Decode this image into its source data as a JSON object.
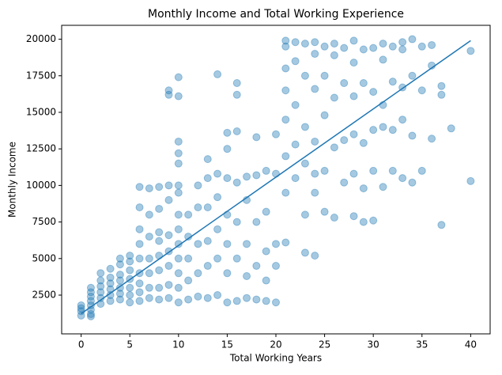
{
  "chart_data": {
    "type": "scatter",
    "title": "Monthly Income and Total Working Experience",
    "xlabel": "Total Working Years",
    "ylabel": "Monthly Income",
    "xlim": [
      -2,
      42
    ],
    "ylim": [
      -150,
      20950
    ],
    "xticks": [
      0,
      5,
      10,
      15,
      20,
      25,
      30,
      35,
      40
    ],
    "yticks": [
      2500,
      5000,
      7500,
      10000,
      12500,
      15000,
      17500,
      20000
    ],
    "points": {
      "color": "#1f77b4",
      "opacity": 0.4,
      "x": [
        0,
        0,
        0,
        0,
        1,
        1,
        1,
        1,
        1,
        1,
        1,
        1,
        2,
        2,
        2,
        2,
        2,
        2,
        3,
        3,
        3,
        3,
        3,
        3,
        4,
        4,
        4,
        4,
        4,
        4,
        4,
        5,
        5,
        5,
        5,
        5,
        5,
        5,
        6,
        6,
        6,
        6,
        6,
        6,
        6,
        6,
        6,
        7,
        7,
        7,
        7,
        7,
        7,
        7,
        8,
        8,
        8,
        8,
        8,
        8,
        8,
        8,
        9,
        9,
        9,
        9,
        9,
        9,
        9,
        9,
        9,
        10,
        10,
        10,
        10,
        10,
        10,
        10,
        10,
        10,
        10,
        10,
        10,
        10,
        10,
        11,
        11,
        11,
        11,
        11,
        12,
        12,
        12,
        12,
        12,
        13,
        13,
        13,
        13,
        13,
        13,
        14,
        14,
        14,
        14,
        14,
        14,
        15,
        15,
        15,
        15,
        15,
        15,
        15,
        16,
        16,
        16,
        16,
        16,
        16,
        16,
        17,
        17,
        17,
        17,
        17,
        18,
        18,
        18,
        18,
        18,
        19,
        19,
        19,
        19,
        19,
        20,
        20,
        20,
        20,
        20,
        21,
        21,
        21,
        21,
        21,
        21,
        21,
        21,
        22,
        22,
        22,
        22,
        22,
        23,
        23,
        23,
        23,
        23,
        23,
        24,
        24,
        24,
        24,
        24,
        24,
        24,
        25,
        25,
        25,
        25,
        25,
        26,
        26,
        26,
        26,
        26,
        27,
        27,
        27,
        27,
        28,
        28,
        28,
        28,
        28,
        28,
        29,
        29,
        29,
        29,
        29,
        30,
        30,
        30,
        30,
        30,
        31,
        31,
        31,
        31,
        31,
        32,
        32,
        32,
        32,
        33,
        33,
        33,
        33,
        33,
        34,
        34,
        34,
        34,
        35,
        35,
        35,
        36,
        36,
        36,
        37,
        37,
        37,
        38,
        40,
        40
      ],
      "y": [
        1100,
        1400,
        1600,
        1800,
        1050,
        1200,
        1500,
        1800,
        2100,
        2400,
        2700,
        3000,
        1900,
        2300,
        2700,
        3100,
        3500,
        4000,
        2100,
        2500,
        2900,
        3300,
        3700,
        4300,
        2200,
        2600,
        3000,
        3500,
        3900,
        4600,
        5000,
        2000,
        2500,
        3000,
        3600,
        4200,
        4800,
        5200,
        2100,
        2700,
        3300,
        4000,
        5000,
        6000,
        7000,
        8500,
        9900,
        2300,
        3000,
        4000,
        5000,
        6500,
        8000,
        9800,
        2200,
        3000,
        4200,
        5200,
        6200,
        6800,
        8400,
        9900,
        2300,
        3200,
        4500,
        5500,
        6600,
        9000,
        10000,
        16200,
        16500,
        2000,
        3000,
        4000,
        5000,
        6000,
        7000,
        8000,
        9500,
        10000,
        11500,
        12200,
        13000,
        16100,
        17400,
        2200,
        3500,
        5000,
        6500,
        8000,
        2400,
        4000,
        6000,
        8500,
        10000,
        2300,
        4500,
        6200,
        8500,
        10500,
        11800,
        2500,
        5000,
        7000,
        9200,
        10800,
        17600,
        2000,
        4000,
        6000,
        8000,
        10500,
        12500,
        13600,
        2100,
        5000,
        7500,
        10200,
        13700,
        16200,
        17000,
        2300,
        3800,
        6000,
        9000,
        10600,
        2200,
        4500,
        7500,
        10700,
        13300,
        2100,
        3500,
        5500,
        8200,
        11000,
        2000,
        4500,
        6000,
        10800,
        13500,
        6100,
        9500,
        12000,
        14500,
        16500,
        18000,
        19500,
        19900,
        10500,
        12800,
        15500,
        18500,
        19800,
        5400,
        8000,
        11500,
        14000,
        17500,
        19700,
        5200,
        9500,
        10800,
        13000,
        16600,
        19000,
        19800,
        8200,
        11000,
        14800,
        17500,
        19500,
        7800,
        12600,
        16000,
        18900,
        19700,
        10200,
        13100,
        17000,
        19400,
        7900,
        10800,
        13500,
        16100,
        18400,
        19900,
        7500,
        9800,
        12900,
        17000,
        19300,
        7600,
        11000,
        13800,
        16400,
        19400,
        9900,
        14000,
        15500,
        18600,
        19700,
        11000,
        13800,
        17100,
        19500,
        10500,
        14500,
        16700,
        19300,
        19800,
        10200,
        13400,
        17500,
        20000,
        11000,
        16500,
        19500,
        13200,
        18200,
        19600,
        7300,
        16200,
        16800,
        13900,
        10300,
        19200
      ]
    },
    "trend_line": {
      "color": "#1f77b4",
      "x": [
        0,
        40
      ],
      "y": [
        1230,
        19900
      ]
    }
  }
}
